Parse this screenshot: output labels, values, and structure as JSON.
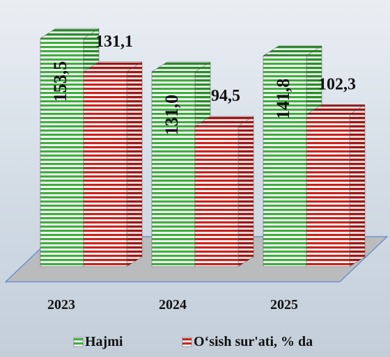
{
  "chart_data": {
    "type": "bar3d",
    "categories": [
      "2023",
      "2024",
      "2025"
    ],
    "series": [
      {
        "name": "Hajmi",
        "color": "#3fae3f",
        "values": [
          153.5,
          131.0,
          141.8
        ],
        "value_labels": [
          "153,5",
          "131,0",
          "141,8"
        ]
      },
      {
        "name": "O‘sish sur'ati, % da",
        "color": "#c8231e",
        "values": [
          131.1,
          94.5,
          102.3
        ],
        "value_labels": [
          "131,1",
          "94,5",
          "102,3"
        ]
      }
    ]
  }
}
